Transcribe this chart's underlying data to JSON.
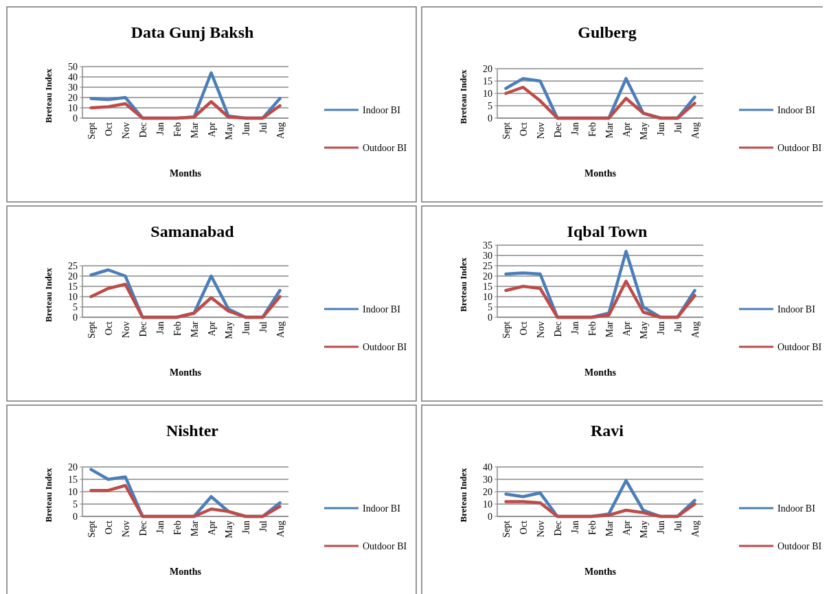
{
  "chart_data": [
    {
      "type": "line",
      "title": "Data Gunj Baksh",
      "xlabel": "Months",
      "ylabel": "Breteau Index",
      "categories": [
        "Sept",
        "Oct",
        "Nov",
        "Dec",
        "Jan",
        "Feb",
        "Mar",
        "Apr",
        "May",
        "Jun",
        "Jul",
        "Aug"
      ],
      "ylim": [
        0,
        50
      ],
      "yticks": [
        0,
        10,
        20,
        30,
        40,
        50
      ],
      "grid": "y",
      "legend": "right",
      "marker": "none",
      "series": [
        {
          "name": "Indoor BI",
          "color": "#4a7ebb",
          "values": [
            19,
            18,
            20,
            0,
            0,
            0,
            1,
            44,
            2,
            0,
            0,
            19
          ]
        },
        {
          "name": "Outdoor BI",
          "color": "#be4b48",
          "values": [
            10,
            11,
            14,
            0,
            0,
            0,
            1,
            16,
            1,
            0,
            0,
            12
          ]
        }
      ]
    },
    {
      "type": "line",
      "title": "Gulberg",
      "xlabel": "Months",
      "ylabel": "Breteau Index",
      "categories": [
        "Sept",
        "Oct",
        "Nov",
        "Dec",
        "Jan",
        "Feb",
        "Mar",
        "Apr",
        "May",
        "Jun",
        "Jul",
        "Aug"
      ],
      "ylim": [
        0,
        20
      ],
      "yticks": [
        0,
        5,
        10,
        15,
        20
      ],
      "grid": "y",
      "legend": "right",
      "marker": "none",
      "series": [
        {
          "name": "Indoor BI",
          "color": "#4a7ebb",
          "values": [
            12,
            16,
            15,
            0,
            0,
            0,
            0,
            16,
            2,
            0,
            0,
            8.5
          ]
        },
        {
          "name": "Outdoor BI",
          "color": "#be4b48",
          "values": [
            10,
            12.5,
            7,
            0,
            0,
            0,
            0,
            8,
            2,
            0,
            0,
            6
          ]
        }
      ]
    },
    {
      "type": "line",
      "title": "Samanabad",
      "xlabel": "Months",
      "ylabel": "Breteau Index",
      "categories": [
        "Sept",
        "Oct",
        "Nov",
        "Dec",
        "Jan",
        "Feb",
        "Mar",
        "Apr",
        "May",
        "Jun",
        "Jul",
        "Aug"
      ],
      "ylim": [
        0,
        25
      ],
      "yticks": [
        0,
        5,
        10,
        15,
        20,
        25
      ],
      "grid": "y",
      "legend": "right",
      "marker": "none",
      "series": [
        {
          "name": "Indoor BI",
          "color": "#4a7ebb",
          "values": [
            20.5,
            23,
            20,
            0,
            0,
            0,
            2,
            20,
            4,
            0,
            0,
            13
          ]
        },
        {
          "name": "Outdoor BI",
          "color": "#be4b48",
          "values": [
            10,
            14,
            16,
            0,
            0,
            0,
            2,
            9.5,
            3,
            0,
            0,
            10
          ]
        }
      ]
    },
    {
      "type": "line",
      "title": "Iqbal Town",
      "xlabel": "Months",
      "ylabel": "Breteau Index",
      "categories": [
        "Sept",
        "Oct",
        "Nov",
        "Dec",
        "Jan",
        "Feb",
        "Mar",
        "Apr",
        "May",
        "Jun",
        "Jul",
        "Aug"
      ],
      "ylim": [
        0,
        35
      ],
      "yticks": [
        0,
        5,
        10,
        15,
        20,
        25,
        30,
        35
      ],
      "grid": "y",
      "legend": "right",
      "marker": "none",
      "series": [
        {
          "name": "Indoor BI",
          "color": "#4a7ebb",
          "values": [
            21,
            21.5,
            21,
            0,
            0,
            0,
            2,
            32,
            5,
            0,
            0,
            13
          ]
        },
        {
          "name": "Outdoor BI",
          "color": "#be4b48",
          "values": [
            13,
            15,
            14,
            0,
            0,
            0,
            1,
            17.5,
            2.5,
            0,
            0,
            10.5
          ]
        }
      ]
    },
    {
      "type": "line",
      "title": "Nishter",
      "xlabel": "Months",
      "ylabel": "Breteau Index",
      "categories": [
        "Sept",
        "Oct",
        "Nov",
        "Dec",
        "Jan",
        "Feb",
        "Mar",
        "Apr",
        "May",
        "Jun",
        "Jul",
        "Aug"
      ],
      "ylim": [
        0,
        20
      ],
      "yticks": [
        0,
        5,
        10,
        15,
        20
      ],
      "grid": "y",
      "legend": "right",
      "marker": "none",
      "series": [
        {
          "name": "Indoor BI",
          "color": "#4a7ebb",
          "values": [
            19,
            15,
            16,
            0,
            0,
            0,
            0,
            8,
            2,
            0,
            0,
            5.5
          ]
        },
        {
          "name": "Outdoor BI",
          "color": "#be4b48",
          "values": [
            10.5,
            10.5,
            12.5,
            0,
            0,
            0,
            0,
            3,
            2,
            0,
            0,
            4
          ]
        }
      ]
    },
    {
      "type": "line",
      "title": "Ravi",
      "xlabel": "Months",
      "ylabel": "Breteau Index",
      "categories": [
        "Sept",
        "Oct",
        "Nov",
        "Dec",
        "Jan",
        "Feb",
        "Mar",
        "Apr",
        "May",
        "Jun",
        "Jul",
        "Aug"
      ],
      "ylim": [
        0,
        40
      ],
      "yticks": [
        0,
        10,
        20,
        30,
        40
      ],
      "grid": "y",
      "legend": "right",
      "marker": "none",
      "series": [
        {
          "name": "Indoor BI",
          "color": "#4a7ebb",
          "values": [
            18,
            16,
            19,
            0,
            0,
            0,
            2,
            29,
            5,
            0,
            0,
            13
          ]
        },
        {
          "name": "Outdoor BI",
          "color": "#be4b48",
          "values": [
            12,
            12,
            11,
            0,
            0,
            0,
            1,
            5,
            3,
            0,
            0,
            10
          ]
        }
      ]
    }
  ]
}
